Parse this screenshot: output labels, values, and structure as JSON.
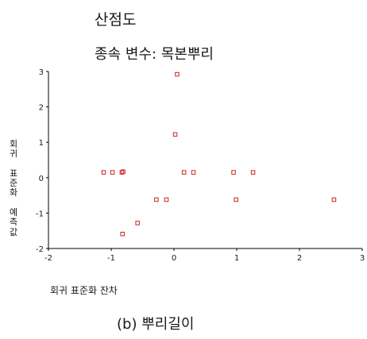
{
  "chart_data": {
    "type": "scatter",
    "title": "산점도",
    "subtitle": "종속 변수: 목본뿌리",
    "xlabel": "회귀 표준화 잔차",
    "ylabel": "회귀 표준화 예측값",
    "caption": "(b) 뿌리길이",
    "xlim": [
      -2,
      3
    ],
    "ylim": [
      -2,
      3
    ],
    "xticks": [
      -2,
      -1,
      0,
      1,
      2,
      3
    ],
    "yticks": [
      -2,
      -1,
      0,
      1,
      2,
      3
    ],
    "grid": false,
    "marker_color": "#cc2222",
    "points": [
      {
        "x": 0.05,
        "y": 2.92
      },
      {
        "x": 0.02,
        "y": 1.22
      },
      {
        "x": -1.12,
        "y": 0.15
      },
      {
        "x": -0.98,
        "y": 0.15
      },
      {
        "x": -0.83,
        "y": 0.15
      },
      {
        "x": -0.81,
        "y": 0.17
      },
      {
        "x": 0.16,
        "y": 0.15
      },
      {
        "x": 0.31,
        "y": 0.15
      },
      {
        "x": 0.95,
        "y": 0.15
      },
      {
        "x": 1.26,
        "y": 0.15
      },
      {
        "x": -0.28,
        "y": -0.62
      },
      {
        "x": -0.12,
        "y": -0.62
      },
      {
        "x": 0.99,
        "y": -0.62
      },
      {
        "x": 2.55,
        "y": -0.62
      },
      {
        "x": -0.58,
        "y": -1.28
      },
      {
        "x": -0.82,
        "y": -1.59
      }
    ]
  }
}
